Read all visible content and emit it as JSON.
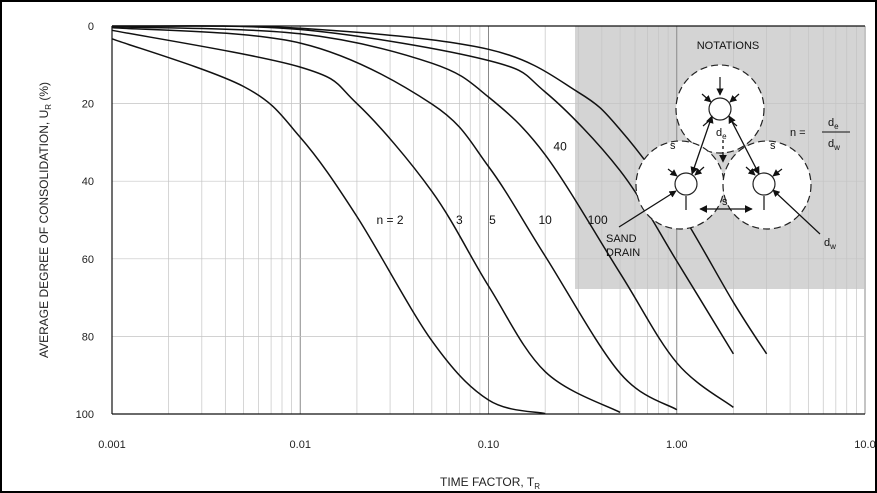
{
  "chart_data": {
    "type": "line",
    "x_scale": "log",
    "xlim": [
      0.001,
      10.0
    ],
    "ylim": [
      0,
      100
    ],
    "y_inverted": true,
    "grid": true,
    "xticks": [
      "0.001",
      "0.01",
      "0.10",
      "1.00",
      "10.0"
    ],
    "yticks": [
      "0",
      "20",
      "40",
      "60",
      "80",
      "100"
    ],
    "xlabel": "TIME FACTOR, T",
    "xlabel_sub": "R",
    "ylabel": "AVERAGE DEGREE OF CONSOLIDATION, U",
    "ylabel_sub": "R",
    "ylabel_unit": " (%)",
    "series": [
      {
        "name": "n = 2",
        "x": [
          0.001,
          0.005,
          0.01,
          0.02,
          0.05,
          0.1,
          0.2
        ],
        "y": [
          3.3,
          15.6,
          28.7,
          49.1,
          81.1,
          96.4,
          99.9
        ]
      },
      {
        "name": "3",
        "x": [
          0.001,
          0.01,
          0.02,
          0.05,
          0.1,
          0.2,
          0.5
        ],
        "y": [
          1.1,
          10.6,
          20.0,
          42.6,
          67.0,
          89.1,
          99.6
        ]
      },
      {
        "name": "5",
        "x": [
          0.001,
          0.01,
          0.05,
          0.1,
          0.2,
          0.5,
          1.0
        ],
        "y": [
          0.4,
          4.4,
          20.1,
          36.2,
          59.3,
          89.5,
          98.9
        ]
      },
      {
        "name": "10",
        "x": [
          0.001,
          0.01,
          0.05,
          0.1,
          0.2,
          0.5,
          1.0,
          2.0
        ],
        "y": [
          0.2,
          2.0,
          9.6,
          18.3,
          33.2,
          63.7,
          86.8,
          98.3
        ]
      },
      {
        "name": "40",
        "x": [
          0.001,
          0.01,
          0.1,
          0.2,
          0.5,
          1.0,
          2.0
        ],
        "y": [
          0.1,
          0.9,
          8.9,
          17.0,
          37.3,
          60.6,
          84.5
        ]
      },
      {
        "name": "100",
        "x": [
          0.001,
          0.01,
          0.1,
          0.3,
          0.5,
          1.0,
          2.0,
          3.0
        ],
        "y": [
          0.0,
          0.6,
          6.0,
          17.1,
          26.7,
          46.3,
          71.2,
          84.5
        ]
      }
    ],
    "curve_labels": [
      {
        "text": "n = 2",
        "x": 0.03,
        "y": 50
      },
      {
        "text": "3",
        "x": 0.07,
        "y": 50
      },
      {
        "text": "5",
        "x": 0.105,
        "y": 50
      },
      {
        "text": "10",
        "x": 0.2,
        "y": 50
      },
      {
        "text": "40",
        "x": 0.24,
        "y": 31
      },
      {
        "text": "100",
        "x": 0.38,
        "y": 50
      }
    ]
  },
  "inset": {
    "title": "NOTATIONS",
    "formula_lhs": "n =",
    "formula_num": "d",
    "formula_num_sub": "e",
    "formula_den": "d",
    "formula_den_sub": "w",
    "de_label": "d",
    "de_sub": "e",
    "s_label": "s",
    "sand_label": "SAND",
    "drain_label": "DRAIN",
    "dw_label": "d",
    "dw_sub": "w",
    "background_color": "#d4d4d4"
  }
}
